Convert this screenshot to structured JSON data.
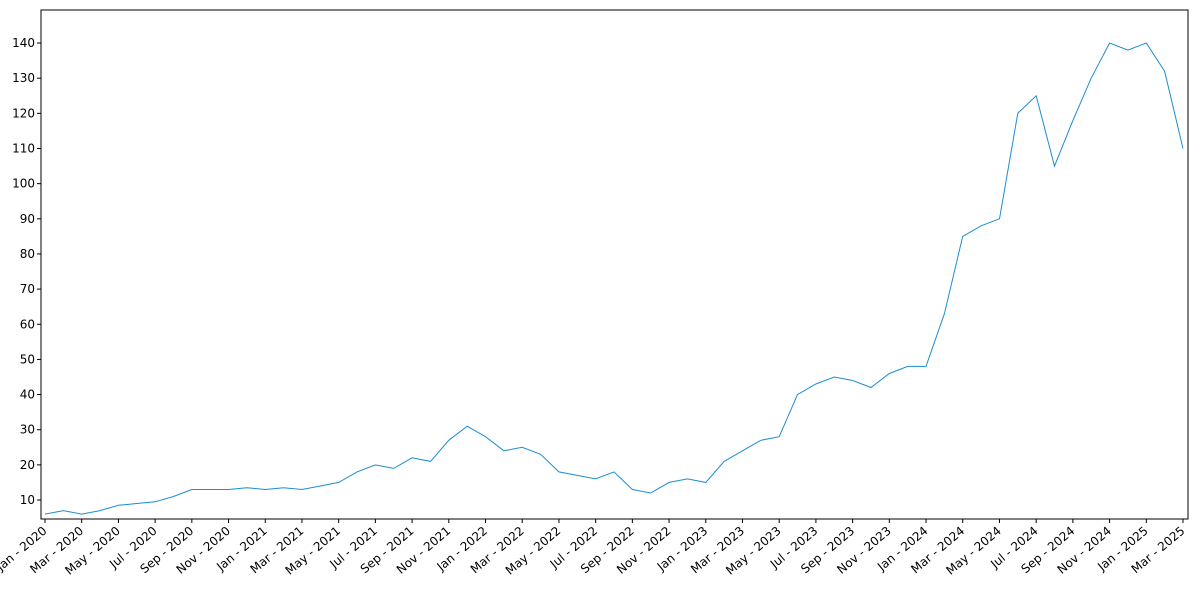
{
  "chart_data": {
    "type": "line",
    "x": [
      "2020-01",
      "2020-02",
      "2020-03",
      "2020-04",
      "2020-05",
      "2020-06",
      "2020-07",
      "2020-08",
      "2020-09",
      "2020-10",
      "2020-11",
      "2020-12",
      "2021-01",
      "2021-02",
      "2021-03",
      "2021-04",
      "2021-05",
      "2021-06",
      "2021-07",
      "2021-08",
      "2021-09",
      "2021-10",
      "2021-11",
      "2021-12",
      "2022-01",
      "2022-02",
      "2022-03",
      "2022-04",
      "2022-05",
      "2022-06",
      "2022-07",
      "2022-08",
      "2022-09",
      "2022-10",
      "2022-11",
      "2022-12",
      "2023-01",
      "2023-02",
      "2023-03",
      "2023-04",
      "2023-05",
      "2023-06",
      "2023-07",
      "2023-08",
      "2023-09",
      "2023-10",
      "2023-11",
      "2023-12",
      "2024-01",
      "2024-02",
      "2024-03",
      "2024-04",
      "2024-05",
      "2024-06",
      "2024-07",
      "2024-08",
      "2024-09",
      "2024-10",
      "2024-11",
      "2024-12",
      "2025-01",
      "2025-02",
      "2025-03"
    ],
    "values": [
      6,
      7,
      6,
      7,
      8.5,
      9,
      9.5,
      11,
      13,
      13,
      13,
      13.5,
      13,
      13.5,
      13,
      14,
      15,
      18,
      20,
      19,
      22,
      21,
      27,
      31,
      28,
      24,
      25,
      23,
      18,
      17,
      16,
      18,
      13,
      12,
      15,
      16,
      15,
      21,
      24,
      27,
      28,
      40,
      43,
      45,
      44,
      42,
      46,
      48,
      48,
      63,
      85,
      88,
      90,
      120,
      125,
      105,
      118,
      130,
      140,
      138,
      140,
      132,
      110
    ],
    "color": "#1a8ed1",
    "xlim": [
      "2020-01",
      "2025-03"
    ],
    "ylim": [
      4.6,
      149.4
    ],
    "yticks": [
      10,
      20,
      30,
      40,
      50,
      60,
      70,
      80,
      90,
      100,
      110,
      120,
      130,
      140
    ],
    "xticks": [
      {
        "value": "2020-01",
        "label": "Jan - 2020"
      },
      {
        "value": "2020-03",
        "label": "Mar - 2020"
      },
      {
        "value": "2020-05",
        "label": "May - 2020"
      },
      {
        "value": "2020-07",
        "label": "Jul - 2020"
      },
      {
        "value": "2020-09",
        "label": "Sep - 2020"
      },
      {
        "value": "2020-11",
        "label": "Nov - 2020"
      },
      {
        "value": "2021-01",
        "label": "Jan - 2021"
      },
      {
        "value": "2021-03",
        "label": "Mar - 2021"
      },
      {
        "value": "2021-05",
        "label": "May - 2021"
      },
      {
        "value": "2021-07",
        "label": "Jul - 2021"
      },
      {
        "value": "2021-09",
        "label": "Sep - 2021"
      },
      {
        "value": "2021-11",
        "label": "Nov - 2021"
      },
      {
        "value": "2022-01",
        "label": "Jan - 2022"
      },
      {
        "value": "2022-03",
        "label": "Mar - 2022"
      },
      {
        "value": "2022-05",
        "label": "May - 2022"
      },
      {
        "value": "2022-07",
        "label": "Jul - 2022"
      },
      {
        "value": "2022-09",
        "label": "Sep - 2022"
      },
      {
        "value": "2022-11",
        "label": "Nov - 2022"
      },
      {
        "value": "2023-01",
        "label": "Jan - 2023"
      },
      {
        "value": "2023-03",
        "label": "Mar - 2023"
      },
      {
        "value": "2023-05",
        "label": "May - 2023"
      },
      {
        "value": "2023-07",
        "label": "Jul - 2023"
      },
      {
        "value": "2023-09",
        "label": "Sep - 2023"
      },
      {
        "value": "2023-11",
        "label": "Nov - 2023"
      },
      {
        "value": "2024-01",
        "label": "Jan - 2024"
      },
      {
        "value": "2024-03",
        "label": "Mar - 2024"
      },
      {
        "value": "2024-05",
        "label": "May - 2024"
      },
      {
        "value": "2024-07",
        "label": "Jul - 2024"
      },
      {
        "value": "2024-09",
        "label": "Sep - 2024"
      },
      {
        "value": "2024-11",
        "label": "Nov - 2024"
      },
      {
        "value": "2025-01",
        "label": "Jan - 2025"
      },
      {
        "value": "2025-03",
        "label": "Mar - 2025"
      }
    ],
    "grid": false
  }
}
